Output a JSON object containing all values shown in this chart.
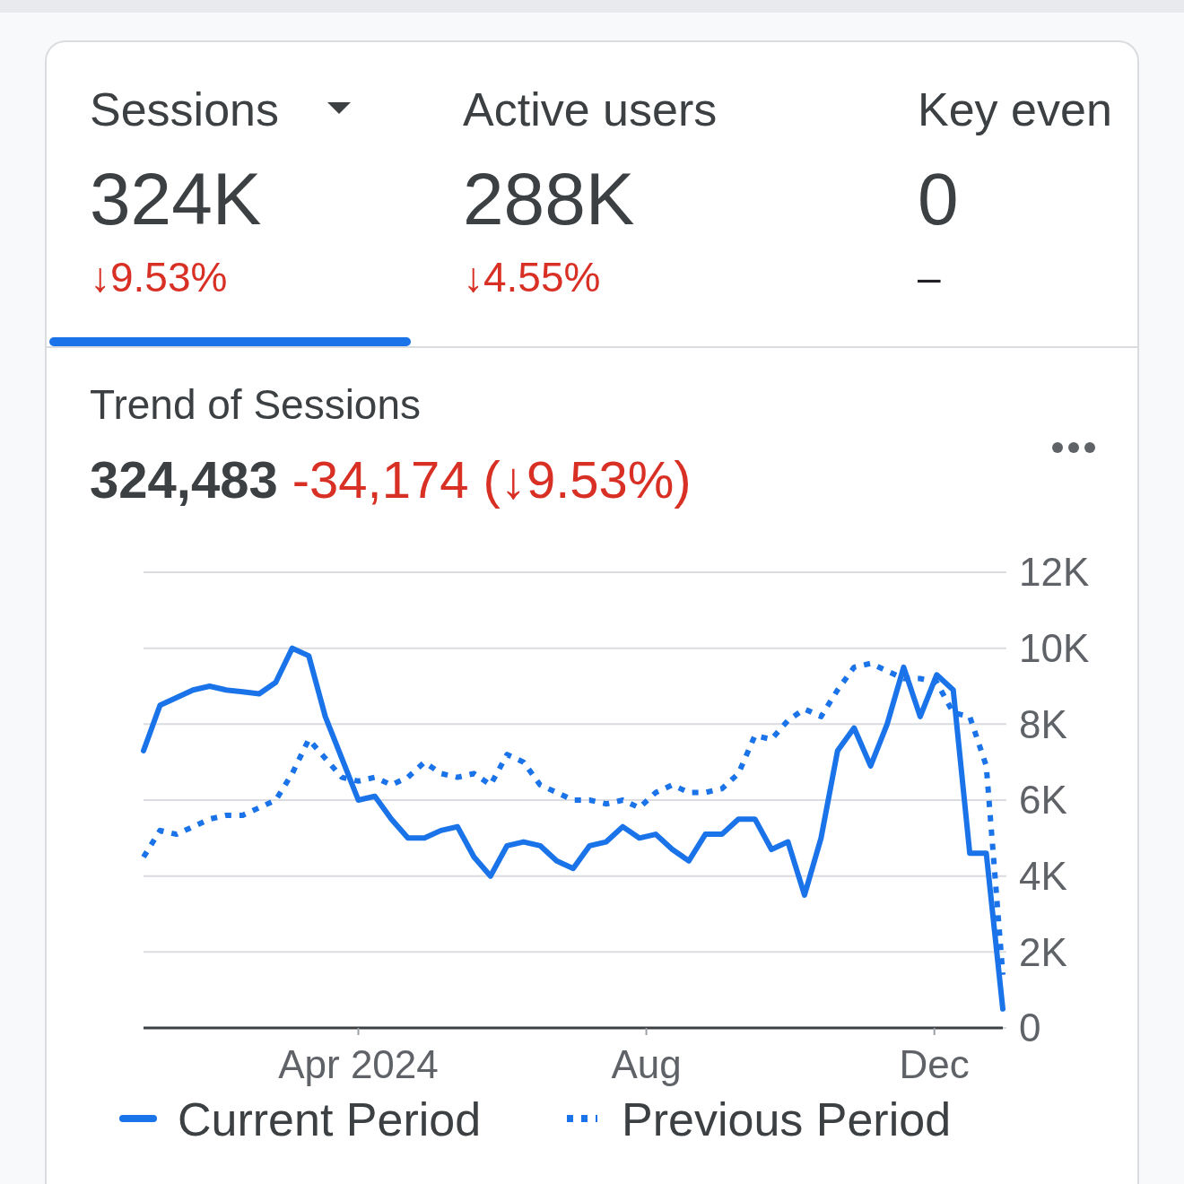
{
  "chart_data": {
    "type": "line",
    "title": "Trend of Sessions",
    "subtitle": "324,483 -34,174 (↓9.53%)",
    "annotations": [
      "Sessions",
      "324K",
      "↓9.53%",
      "Active users",
      "288K",
      "↓4.55%",
      "Key even",
      "0",
      "–"
    ],
    "x": [
      "2024-01-01",
      "2024-01-08",
      "2024-01-15",
      "2024-01-22",
      "2024-01-29",
      "2024-02-05",
      "2024-02-12",
      "2024-02-19",
      "2024-02-26",
      "2024-03-04",
      "2024-03-11",
      "2024-03-18",
      "2024-03-25",
      "2024-04-01",
      "2024-04-08",
      "2024-04-15",
      "2024-04-22",
      "2024-04-29",
      "2024-05-06",
      "2024-05-13",
      "2024-05-20",
      "2024-05-27",
      "2024-06-03",
      "2024-06-10",
      "2024-06-17",
      "2024-06-24",
      "2024-07-01",
      "2024-07-08",
      "2024-07-15",
      "2024-07-22",
      "2024-07-29",
      "2024-08-05",
      "2024-08-12",
      "2024-08-19",
      "2024-08-26",
      "2024-09-02",
      "2024-09-09",
      "2024-09-16",
      "2024-09-23",
      "2024-09-30",
      "2024-10-07",
      "2024-10-14",
      "2024-10-21",
      "2024-10-28",
      "2024-11-04",
      "2024-11-11",
      "2024-11-18",
      "2024-11-25",
      "2024-12-02",
      "2024-12-09",
      "2024-12-16",
      "2024-12-23",
      "2024-12-30"
    ],
    "series": [
      {
        "name": "Current Period",
        "color": "#1a73e8",
        "line_style": "solid",
        "values": [
          7300,
          8500,
          8700,
          8900,
          9000,
          8900,
          8850,
          8800,
          9100,
          10000,
          9800,
          8200,
          7100,
          6000,
          6100,
          5500,
          5000,
          5000,
          5200,
          5300,
          4500,
          4000,
          4800,
          4900,
          4800,
          4400,
          4200,
          4800,
          4900,
          5300,
          5000,
          5100,
          4700,
          4400,
          5100,
          5100,
          5500,
          5500,
          4700,
          4900,
          3500,
          5000,
          7300,
          7900,
          6900,
          8000,
          9500,
          8200,
          9300,
          8900,
          4600,
          4600,
          500
        ]
      },
      {
        "name": "Previous Period",
        "color": "#1a73e8",
        "line_style": "dotted",
        "values": [
          4500,
          5200,
          5100,
          5300,
          5500,
          5600,
          5600,
          5800,
          6000,
          6700,
          7600,
          7100,
          6600,
          6500,
          6600,
          6400,
          6600,
          7000,
          6700,
          6600,
          6700,
          6400,
          7200,
          7000,
          6400,
          6200,
          6000,
          6000,
          5900,
          6000,
          5800,
          6200,
          6400,
          6200,
          6200,
          6300,
          6700,
          7700,
          7600,
          8100,
          8400,
          8200,
          8900,
          9500,
          9600,
          9400,
          9200,
          9200,
          9100,
          8300,
          8200,
          6900,
          1400
        ]
      }
    ],
    "xlim": [
      "2024-01-01",
      "2024-12-30"
    ],
    "xticks": [
      {
        "value": "2024-04-01",
        "label": "Apr 2024"
      },
      {
        "value": "2024-08-01",
        "label": "Aug"
      },
      {
        "value": "2024-12-01",
        "label": "Dec"
      }
    ],
    "ylim": [
      0,
      12000
    ],
    "yticks": [
      {
        "value": 0,
        "label": "0"
      },
      {
        "value": 2000,
        "label": "2K"
      },
      {
        "value": 4000,
        "label": "4K"
      },
      {
        "value": 6000,
        "label": "6K"
      },
      {
        "value": 8000,
        "label": "8K"
      },
      {
        "value": 10000,
        "label": "10K"
      },
      {
        "value": 12000,
        "label": "12K"
      }
    ],
    "grid": "y",
    "legend": "bottom"
  }
}
